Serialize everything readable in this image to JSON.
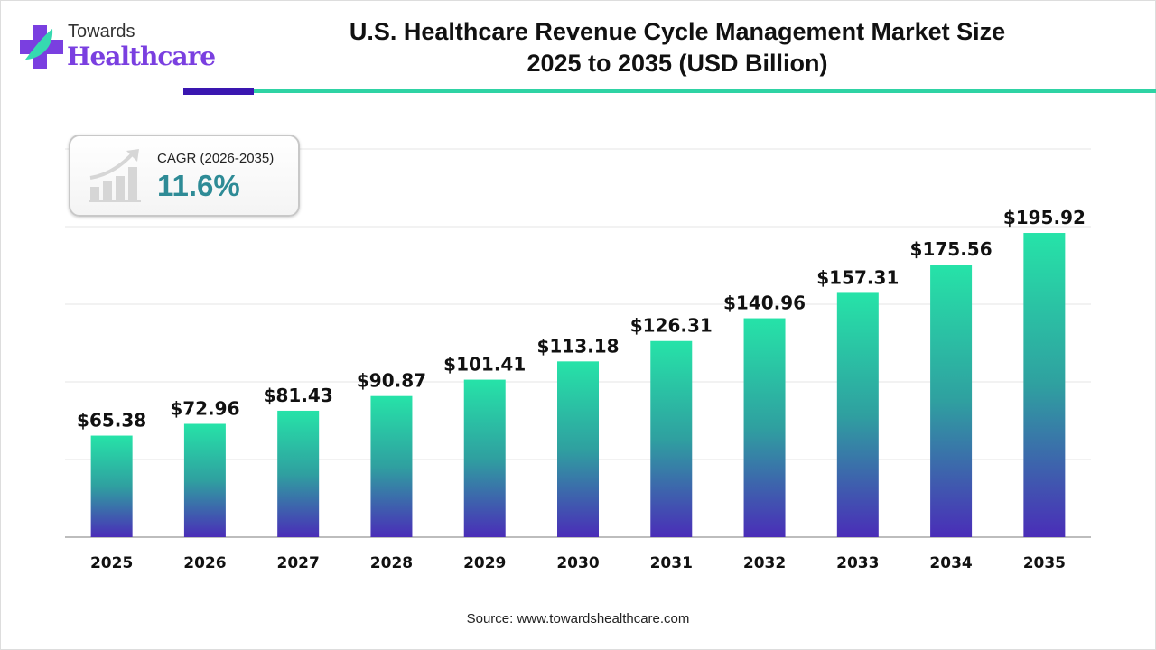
{
  "logo": {
    "line1": "Towards",
    "line2": "Healthcare"
  },
  "title_line1": "U.S. Healthcare Revenue Cycle Management Market Size",
  "title_line2": "2025 to 2035 (USD Billion)",
  "cagr": {
    "label": "CAGR (2026-2035)",
    "value": "11.6%",
    "icon": "growth-chart-icon"
  },
  "source": "Source: www.towardshealthcare.com",
  "colors": {
    "bar_top": "#26e3a8",
    "bar_bottom": "#4a2db8",
    "accent_dark": "#3a16b0",
    "accent_teal": "#2fd3a4",
    "cagr_value": "#2e8b96"
  },
  "chart_data": {
    "type": "bar",
    "title": "U.S. Healthcare Revenue Cycle Management Market Size 2025 to 2035 (USD Billion)",
    "categories": [
      "2025",
      "2026",
      "2027",
      "2028",
      "2029",
      "2030",
      "2031",
      "2032",
      "2033",
      "2034",
      "2035"
    ],
    "values": [
      65.38,
      72.96,
      81.43,
      90.87,
      101.41,
      113.18,
      126.31,
      140.96,
      157.31,
      175.56,
      195.92
    ],
    "labels": [
      "$65.38",
      "$72.96",
      "$81.43",
      "$90.87",
      "$101.41",
      "$113.18",
      "$126.31",
      "$140.96",
      "$157.31",
      "$175.56",
      "$195.92"
    ],
    "xlabel": "",
    "ylabel": "",
    "ylim": [
      0,
      250
    ],
    "grid": true,
    "y_tick_labels_shown": false
  }
}
